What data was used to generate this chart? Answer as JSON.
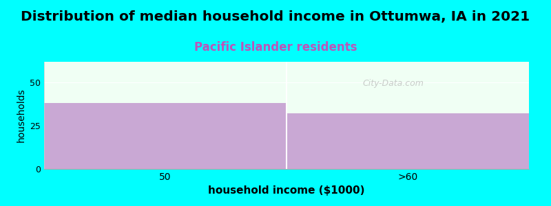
{
  "title": "Distribution of median household income in Ottumwa, IA in 2021",
  "subtitle": "Pacific Islander residents",
  "xlabel": "household income ($1000)",
  "ylabel": "households",
  "categories": [
    "50",
    ">60"
  ],
  "values": [
    38,
    32
  ],
  "bar_color": "#c9a8d4",
  "background_color": "#00ffff",
  "plot_bg_color": "#f0fff4",
  "ylim": [
    0,
    62
  ],
  "yticks": [
    0,
    25,
    50
  ],
  "title_fontsize": 14.5,
  "subtitle_fontsize": 12,
  "subtitle_color": "#bb55bb",
  "xlabel_fontsize": 11,
  "ylabel_fontsize": 10,
  "watermark": "City-Data.com",
  "watermark_icon": "ⓘ"
}
